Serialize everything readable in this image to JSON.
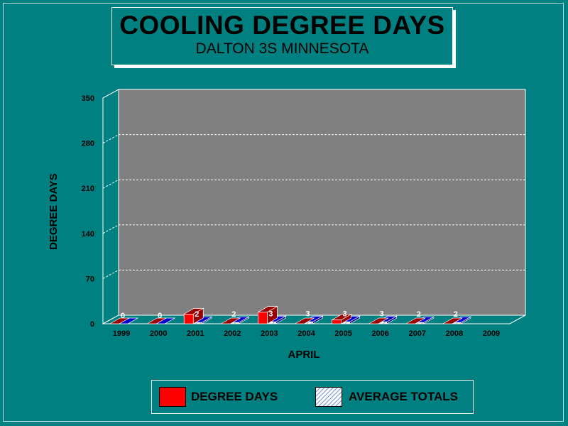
{
  "title": "COOLING DEGREE DAYS",
  "subtitle": "DALTON 3S MINNESOTA",
  "colors": {
    "background": "#008080",
    "plot_back": "#808080",
    "degree_days": "#ff0000",
    "degree_days_dark": "#990000",
    "average": "#0000cc",
    "average_dark": "#000080"
  },
  "chart_data": {
    "type": "bar",
    "categories": [
      "1999",
      "2000",
      "2001",
      "2002",
      "2003",
      "2004",
      "2005",
      "2006",
      "2007",
      "2008",
      "2009"
    ],
    "series": [
      {
        "name": "DEGREE DAYS",
        "values": [
          0,
          0,
          15,
          0,
          18,
          0,
          6,
          0,
          0,
          0,
          null
        ]
      },
      {
        "name": "AVERAGE TOTALS",
        "values": [
          0,
          0,
          2,
          2,
          3,
          3,
          3,
          3,
          2,
          2,
          null
        ]
      }
    ],
    "data_labels": [
      "0",
      "0",
      "2",
      "2",
      "3",
      "3",
      "3",
      "3",
      "2",
      "2",
      ""
    ],
    "xlabel": "APRIL",
    "ylabel": "DEGREE DAYS",
    "ylim": [
      0,
      350
    ],
    "yticks": [
      0,
      70,
      140,
      210,
      280,
      350
    ],
    "grid": true,
    "legend_position": "bottom"
  },
  "legend": {
    "items": [
      {
        "label": "DEGREE DAYS"
      },
      {
        "label": "AVERAGE TOTALS"
      }
    ]
  }
}
